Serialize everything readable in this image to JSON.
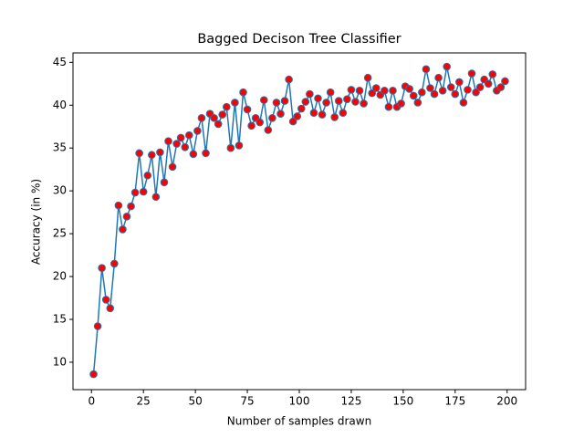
{
  "chart_data": {
    "type": "line",
    "title": "Bagged Decison Tree Classifier",
    "x_label": "Number of samples drawn",
    "y_label": "Accuracy (in %)",
    "x": [
      1,
      3,
      5,
      7,
      9,
      11,
      13,
      15,
      17,
      19,
      21,
      23,
      25,
      27,
      29,
      31,
      33,
      35,
      37,
      39,
      41,
      43,
      45,
      47,
      49,
      51,
      53,
      55,
      57,
      59,
      61,
      63,
      65,
      67,
      69,
      71,
      73,
      75,
      77,
      79,
      81,
      83,
      85,
      87,
      89,
      91,
      93,
      95,
      97,
      99,
      101,
      103,
      105,
      107,
      109,
      111,
      113,
      115,
      117,
      119,
      121,
      123,
      125,
      127,
      129,
      131,
      133,
      135,
      137,
      139,
      141,
      143,
      145,
      147,
      149,
      151,
      153,
      155,
      157,
      159,
      161,
      163,
      165,
      167,
      169,
      171,
      173,
      175,
      177,
      179,
      181,
      183,
      185,
      187,
      189,
      191,
      193,
      195,
      197,
      199
    ],
    "values": [
      8.6,
      14.2,
      21.0,
      17.3,
      16.3,
      21.5,
      28.3,
      25.5,
      27.0,
      28.2,
      29.8,
      34.4,
      29.9,
      31.8,
      34.2,
      29.3,
      34.5,
      31.0,
      35.8,
      32.8,
      35.5,
      36.2,
      35.1,
      36.5,
      34.3,
      37.0,
      38.5,
      34.4,
      39.0,
      38.5,
      37.8,
      38.9,
      39.8,
      35.0,
      40.3,
      35.3,
      41.5,
      39.5,
      37.6,
      38.5,
      38.0,
      40.6,
      37.1,
      38.5,
      40.3,
      39.0,
      40.5,
      43.0,
      38.1,
      38.7,
      39.6,
      40.4,
      41.3,
      39.1,
      40.8,
      38.9,
      40.3,
      41.5,
      38.6,
      40.5,
      39.1,
      40.7,
      41.8,
      40.4,
      41.7,
      40.2,
      43.2,
      41.4,
      42.0,
      41.2,
      41.7,
      39.8,
      41.7,
      39.8,
      40.2,
      42.2,
      41.9,
      41.1,
      40.3,
      41.5,
      44.2,
      42.0,
      41.3,
      43.2,
      41.7,
      44.5,
      42.1,
      41.3,
      42.7,
      40.3,
      41.8,
      43.7,
      41.5,
      42.1,
      43.0,
      42.5,
      43.6,
      41.7,
      42.1,
      42.8
    ],
    "color": "#1f77b4",
    "marker_face_color": "#ff0000",
    "xlim": [
      -8.9,
      208.9
    ],
    "ylim": [
      6.8,
      46.1
    ],
    "xticks": [
      0,
      25,
      50,
      75,
      100,
      125,
      150,
      175,
      200
    ],
    "yticks": [
      10,
      15,
      20,
      25,
      30,
      35,
      40,
      45
    ]
  }
}
